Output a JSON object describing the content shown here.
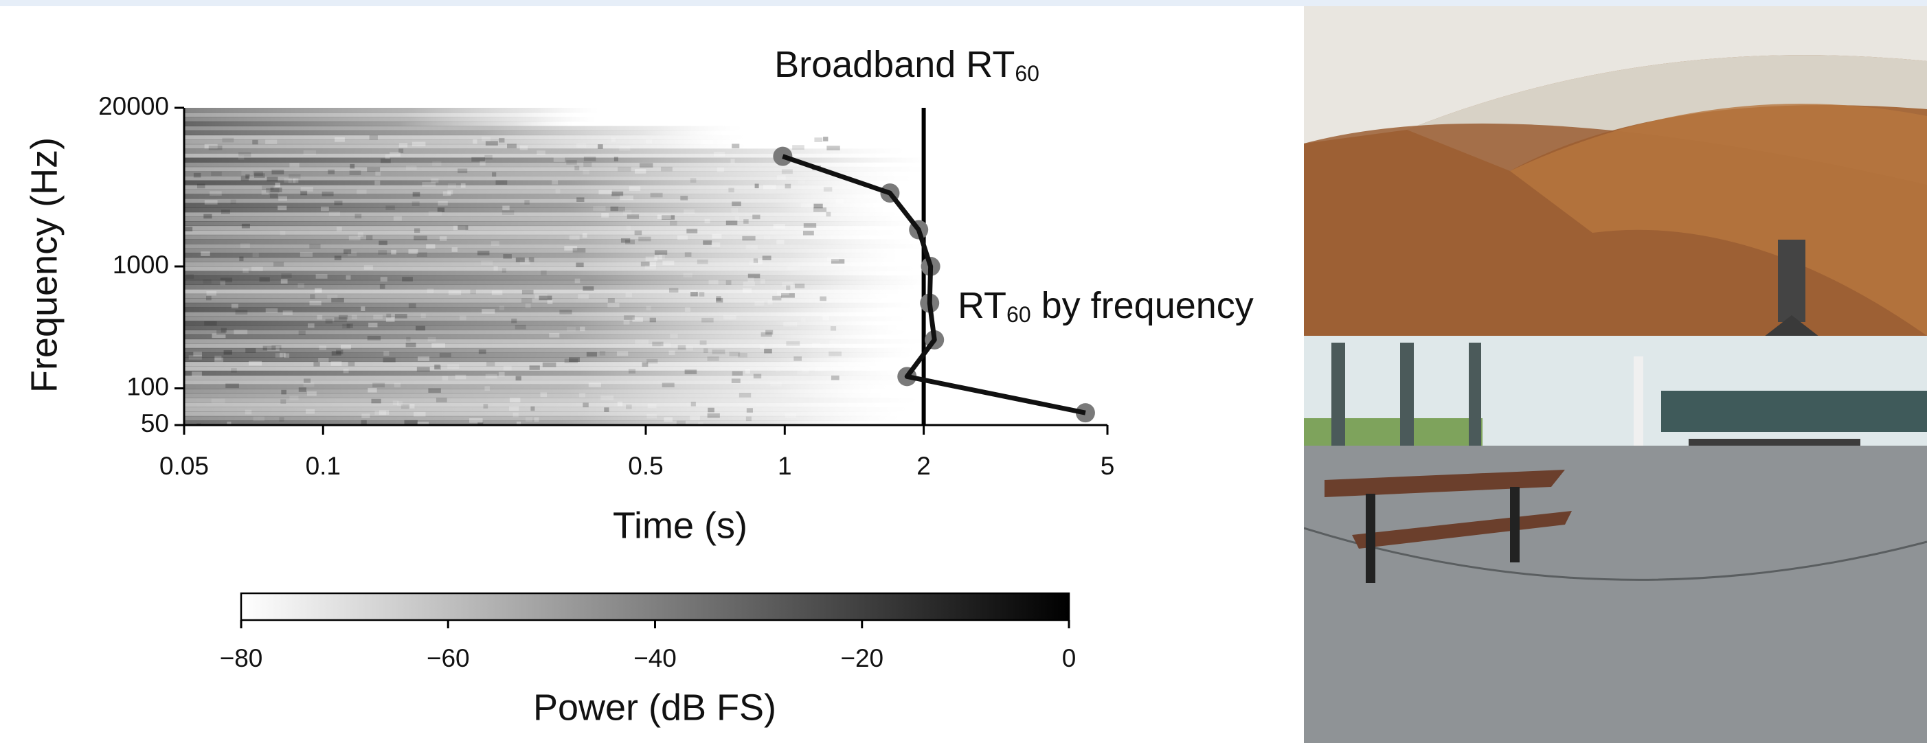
{
  "chart_data": {
    "type": "line",
    "title": {
      "text": "Broadband RT",
      "sub": "60"
    },
    "annotation": {
      "text": "RT",
      "sub": "60",
      "after": " by frequency"
    },
    "xlabel": "Time (s)",
    "ylabel": "Frequency (Hz)",
    "xscale": "log",
    "yscale": "log",
    "xlim": [
      0.05,
      5
    ],
    "ylim": [
      50,
      20000
    ],
    "xticks": [
      0.05,
      0.1,
      0.5,
      1,
      2,
      5
    ],
    "yticks": [
      50,
      100,
      1000,
      20000
    ],
    "broadband_rt60": 2.0,
    "broadband_color": "#000000",
    "series": [
      {
        "color": "#111111",
        "marker_color": "#7a7a7a",
        "x": [
          0.99,
          1.69,
          1.95,
          2.07,
          2.06,
          2.11,
          1.84,
          4.48
        ],
        "y": [
          8000,
          4000,
          2000,
          1000,
          500,
          250,
          125,
          63
        ]
      }
    ],
    "colorbar": {
      "label": "Power (dB FS)",
      "lim": [
        -80,
        0
      ],
      "colors": [
        "#ffffff",
        "#000000"
      ],
      "ticks": [
        {
          "value": -80,
          "label": "−80"
        },
        {
          "value": -60,
          "label": "−60"
        },
        {
          "value": -40,
          "label": "−40"
        },
        {
          "value": -20,
          "label": "−20"
        },
        {
          "value": 0,
          "label": "0"
        }
      ]
    }
  }
}
